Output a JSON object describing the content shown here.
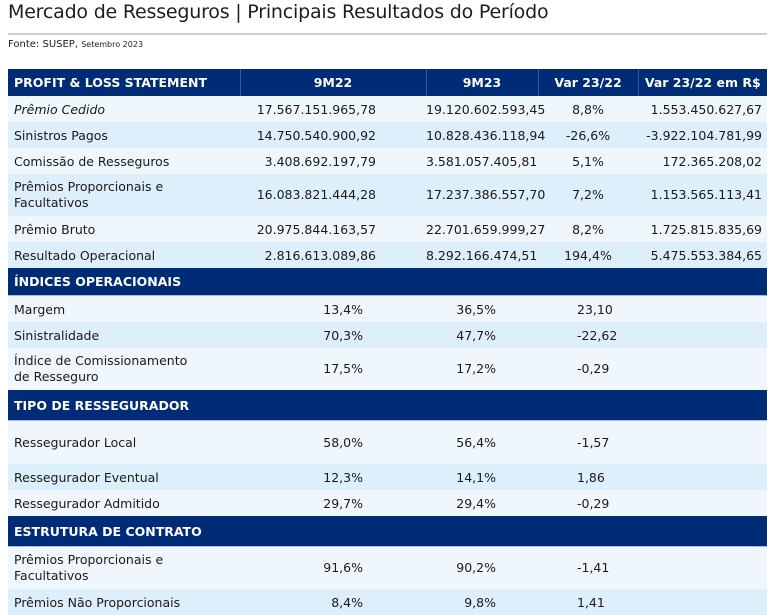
{
  "header": {
    "title": "Mercado de Resseguros | Principais Resultados do Período",
    "source_label": "Fonte: SUSEP,",
    "source_date": "Setembro 2023"
  },
  "table": {
    "columns": [
      "PROFIT & LOSS STATEMENT",
      "9M22",
      "9M23",
      "Var 23/22",
      "Var 23/22 em R$"
    ],
    "pnl_rows": [
      {
        "label": "Prêmio Cedido",
        "v9m22": "17.567.151.965,78",
        "v9m23": "19.120.602.593,45",
        "var": "8,8%",
        "var_rs": "1.553.450.627,67"
      },
      {
        "label": "Sinistros Pagos",
        "v9m22": "14.750.540.900,92",
        "v9m23": "10.828.436.118,94",
        "var": "-26,6%",
        "var_rs": "-3.922.104.781,99"
      },
      {
        "label": "Comissão de Resseguros",
        "v9m22": "3.408.692.197,79",
        "v9m23": "3.581.057.405,81",
        "var": "5,1%",
        "var_rs": "172.365.208,02"
      },
      {
        "label_line1": "Prêmios Proporcionais e",
        "label_line2": "Facultativos",
        "v9m22": "16.083.821.444,28",
        "v9m23": "17.237.386.557,70",
        "var": "7,2%",
        "var_rs": "1.153.565.113,41"
      },
      {
        "label": "Prêmio Bruto",
        "v9m22": "20.975.844.163,57",
        "v9m23": "22.701.659.999,27",
        "var": "8,2%",
        "var_rs": "1.725.815.835,69"
      },
      {
        "label": "Resultado Operacional",
        "v9m22": "2.816.613.089,86",
        "v9m23": "8.292.166.474,51",
        "var": "194,4%",
        "var_rs": "5.475.553.384,65"
      }
    ],
    "indices_title": "ÍNDICES OPERACIONAIS",
    "indices_rows": [
      {
        "label": "Margem",
        "v9m22": "13,4%",
        "v9m23": "36,5%",
        "var": "23,10"
      },
      {
        "label": "Sinistralidade",
        "v9m22": "70,3%",
        "v9m23": "47,7%",
        "var": "-22,62"
      },
      {
        "label_line1": "Índice de Comissionamento",
        "label_line2": "de Resseguro",
        "v9m22": "17,5%",
        "v9m23": "17,2%",
        "var": "-0,29"
      }
    ],
    "tipo_title": "TIPO DE RESSEGURADOR",
    "tipo_rows": [
      {
        "label": "Ressegurador Local",
        "v9m22": "58,0%",
        "v9m23": "56,4%",
        "var": "-1,57"
      },
      {
        "label": "Ressegurador Eventual",
        "v9m22": "12,3%",
        "v9m23": "14,1%",
        "var": "1,86"
      },
      {
        "label": "Ressegurador Admitido",
        "v9m22": "29,7%",
        "v9m23": "29,4%",
        "var": "-0,29"
      }
    ],
    "estrutura_title": "ESTRUTURA DE CONTRATO",
    "estrutura_rows": [
      {
        "label_line1": "Prêmios Proporcionais e",
        "label_line2": "Facultativos",
        "v9m22": "91,6%",
        "v9m23": "90,2%",
        "var": "-1,41"
      },
      {
        "label": "Prêmios Não Proporcionais",
        "v9m22": "8,4%",
        "v9m23": "9,8%",
        "var": "1,41"
      }
    ]
  },
  "colors": {
    "header_bg": "#002b76",
    "row_odd": "#eff7fd",
    "row_even": "#ddeffa"
  }
}
